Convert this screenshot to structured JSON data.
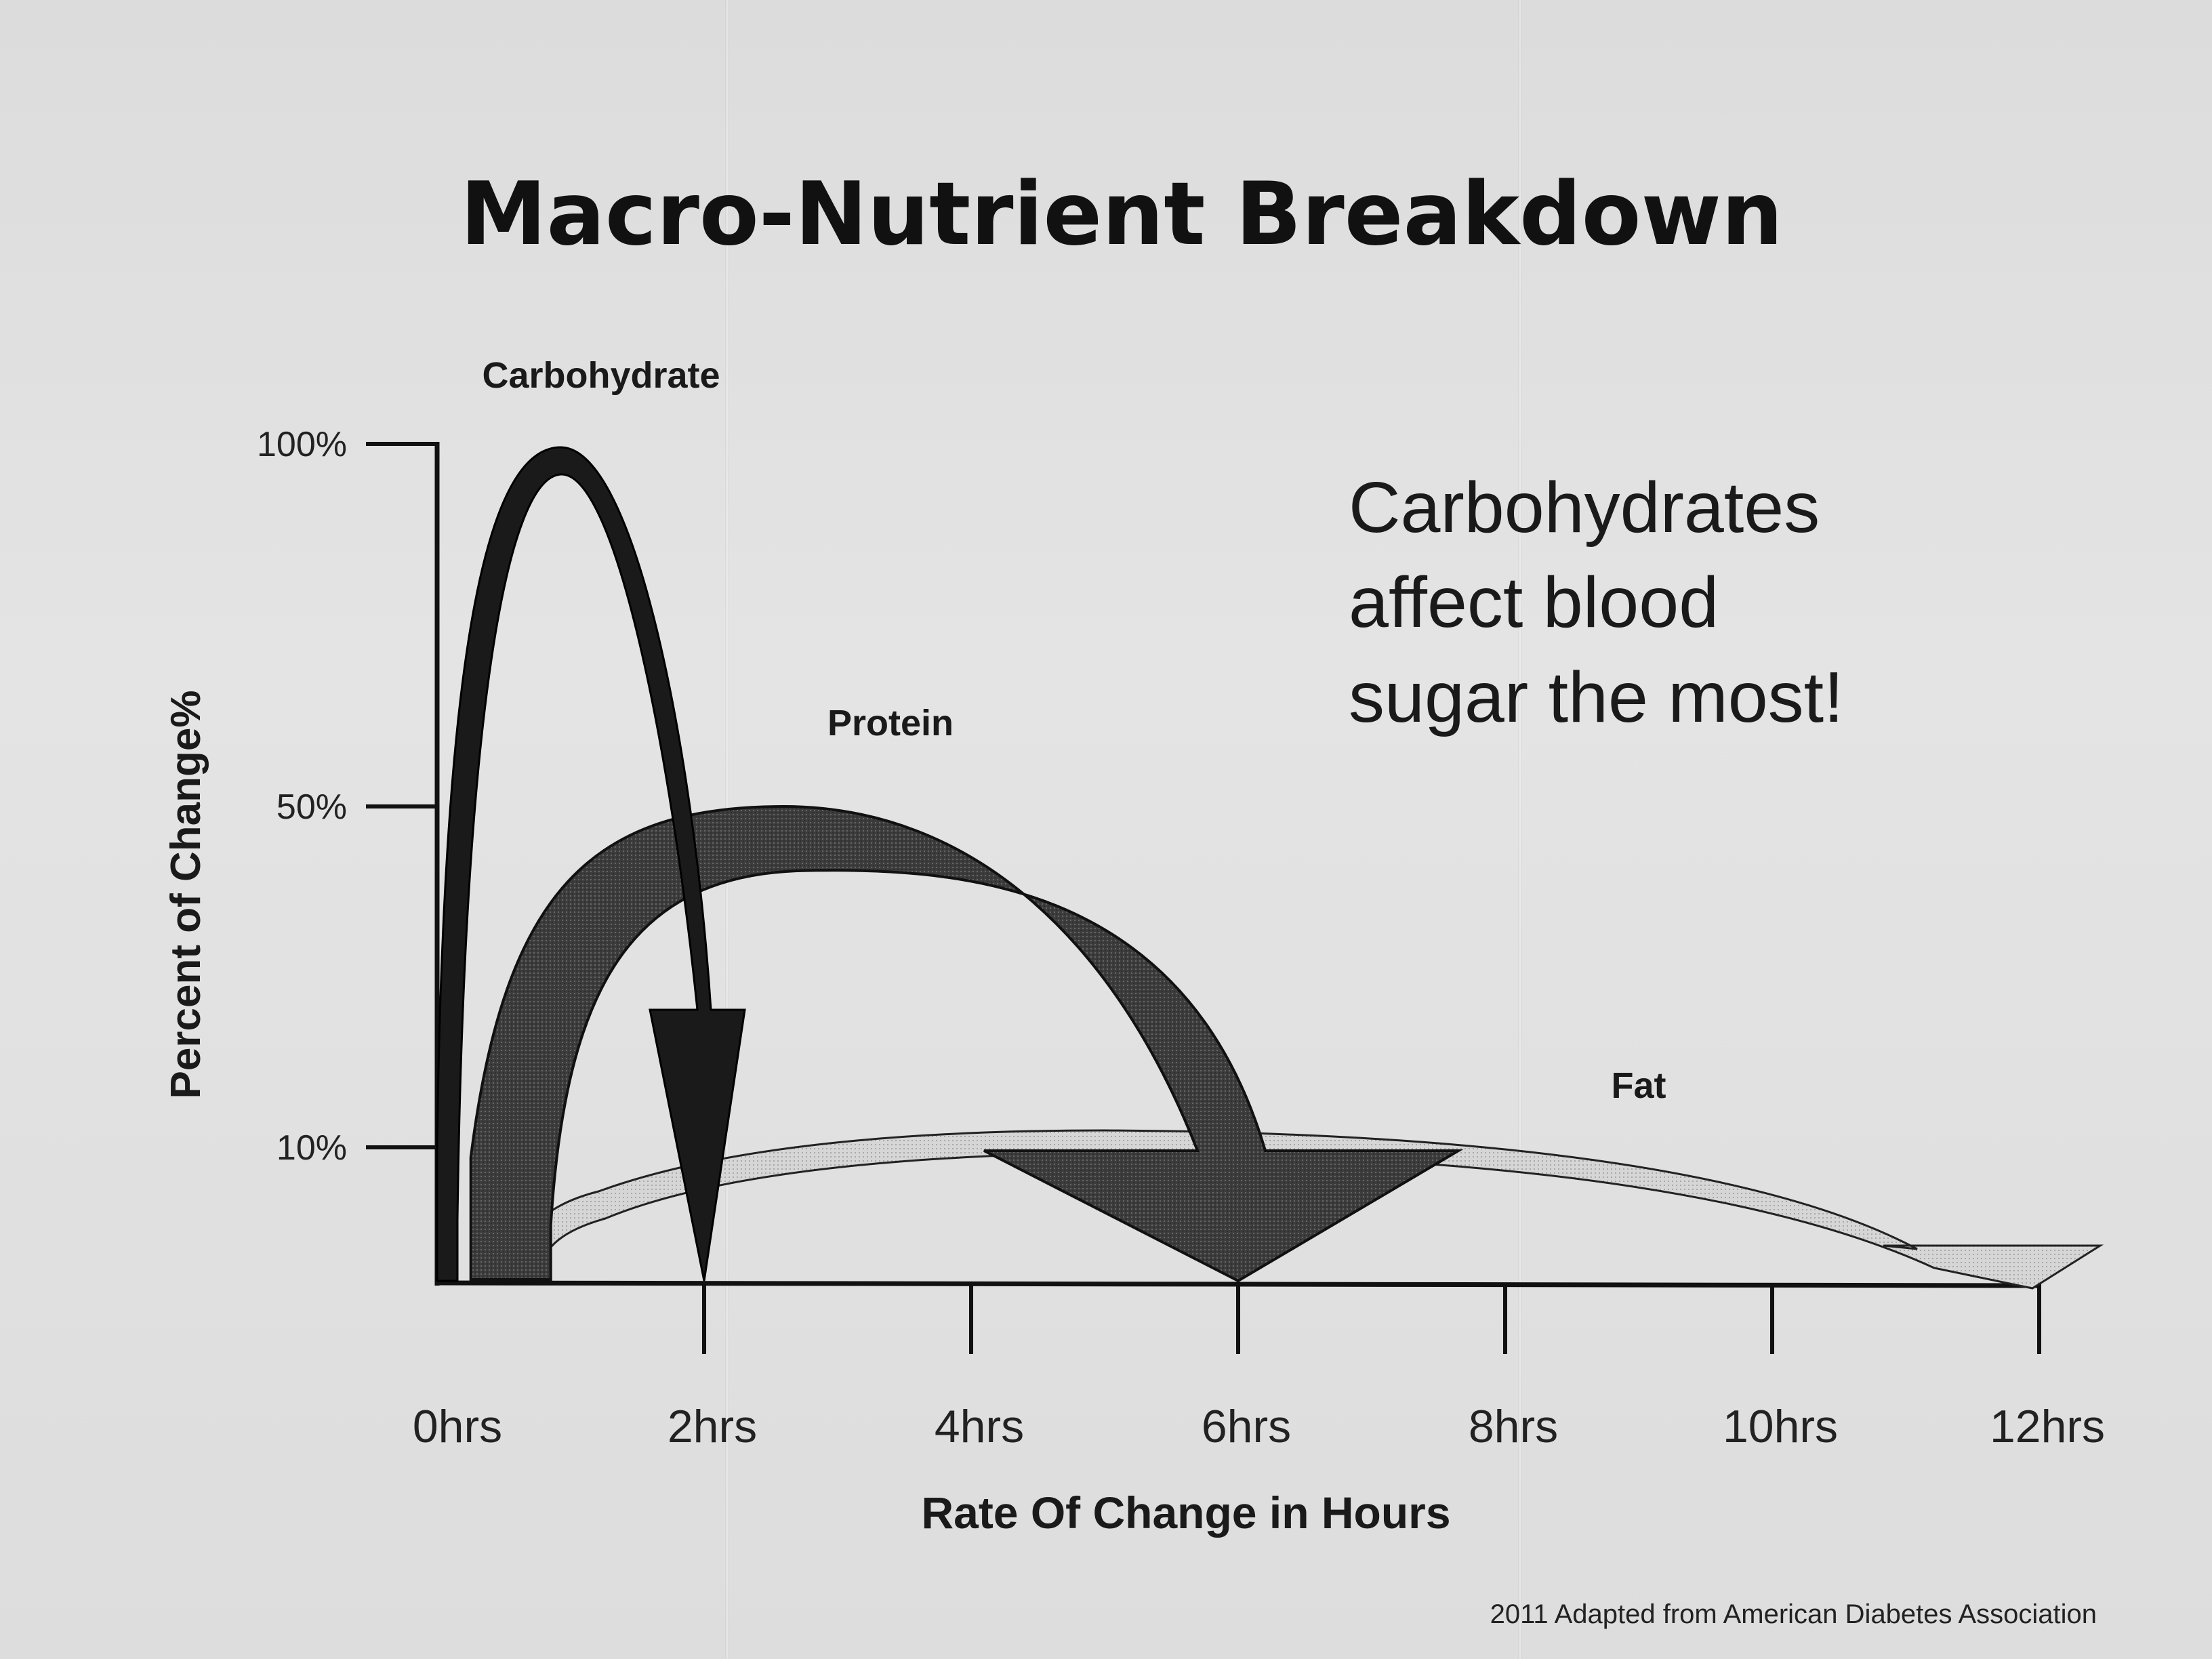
{
  "chart_data": {
    "type": "area",
    "title": "Macro-Nutrient Breakdown",
    "xlabel": "Rate Of Change in Hours",
    "ylabel": "Percent of Change%",
    "x_ticks": [
      "0hrs",
      "2hrs",
      "4hrs",
      "6hrs",
      "8hrs",
      "10hrs",
      "12hrs"
    ],
    "x_tick_values": [
      0,
      2,
      4,
      6,
      8,
      10,
      12
    ],
    "y_ticks": [
      "10%",
      "50%",
      "100%"
    ],
    "y_tick_values": [
      10,
      50,
      100
    ],
    "xlim": [
      0,
      12
    ],
    "series": [
      {
        "name": "Carbohydrate",
        "start_hour": 0,
        "peak_hour": 0.9,
        "peak_percent": 100,
        "end_hour": 2,
        "color": "#1a1a1a"
      },
      {
        "name": "Protein",
        "start_hour": 0.1,
        "peak_hour": 3,
        "peak_percent": 50,
        "end_hour": 6,
        "color": "#3a3a3a"
      },
      {
        "name": "Fat",
        "start_hour": 0.6,
        "peak_hour": 5,
        "peak_percent": 10,
        "end_hour": 12,
        "color": "#bdbdbd"
      }
    ],
    "annotation": [
      "Carbohydrates",
      "affect blood",
      "sugar the most!"
    ],
    "source": "2011 Adapted from American Diabetes Association",
    "grid": false
  }
}
